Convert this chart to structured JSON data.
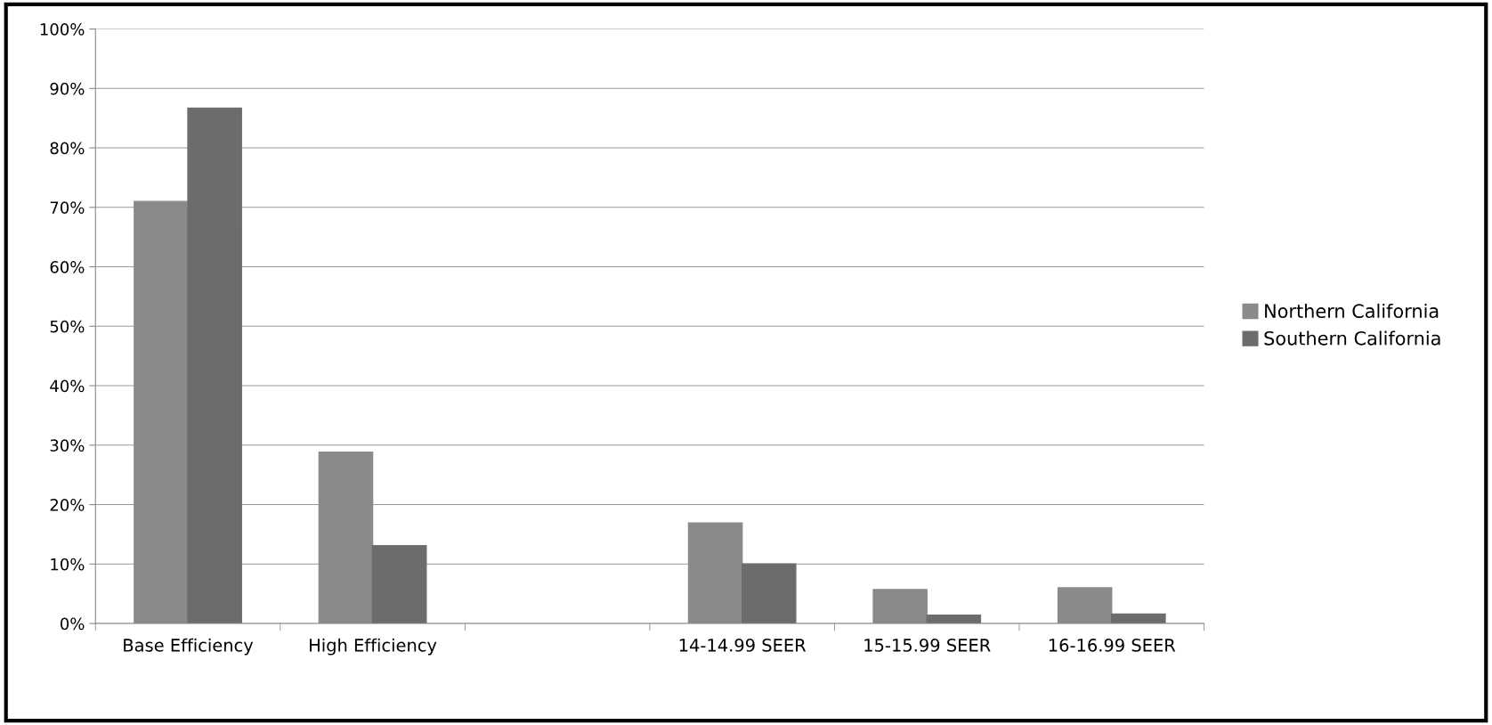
{
  "chart_data": {
    "type": "bar",
    "categories": [
      "Base Efficiency",
      "High Efficiency",
      null,
      "14-14.99 SEER",
      "15-15.99 SEER",
      "16-16.99 SEER"
    ],
    "series": [
      {
        "name": "Northern California",
        "color": "#8a8a8a",
        "values": [
          71,
          28.8,
          null,
          16.9,
          5.7,
          6.0
        ]
      },
      {
        "name": "Southern California",
        "color": "#6c6c6c",
        "values": [
          86.7,
          13.1,
          null,
          10,
          1.4,
          1.6
        ]
      }
    ],
    "ylim": [
      0,
      100
    ],
    "yticks": [
      {
        "value": 0,
        "label": "0%"
      },
      {
        "value": 10,
        "label": "10%"
      },
      {
        "value": 20,
        "label": "20%"
      },
      {
        "value": 30,
        "label": "30%"
      },
      {
        "value": 40,
        "label": "40%"
      },
      {
        "value": 50,
        "label": "50%"
      },
      {
        "value": 60,
        "label": "60%"
      },
      {
        "value": 70,
        "label": "70%"
      },
      {
        "value": 80,
        "label": "80%"
      },
      {
        "value": 90,
        "label": "90%"
      },
      {
        "value": 100,
        "label": "100%"
      }
    ],
    "grid": "y",
    "legend": "right"
  }
}
